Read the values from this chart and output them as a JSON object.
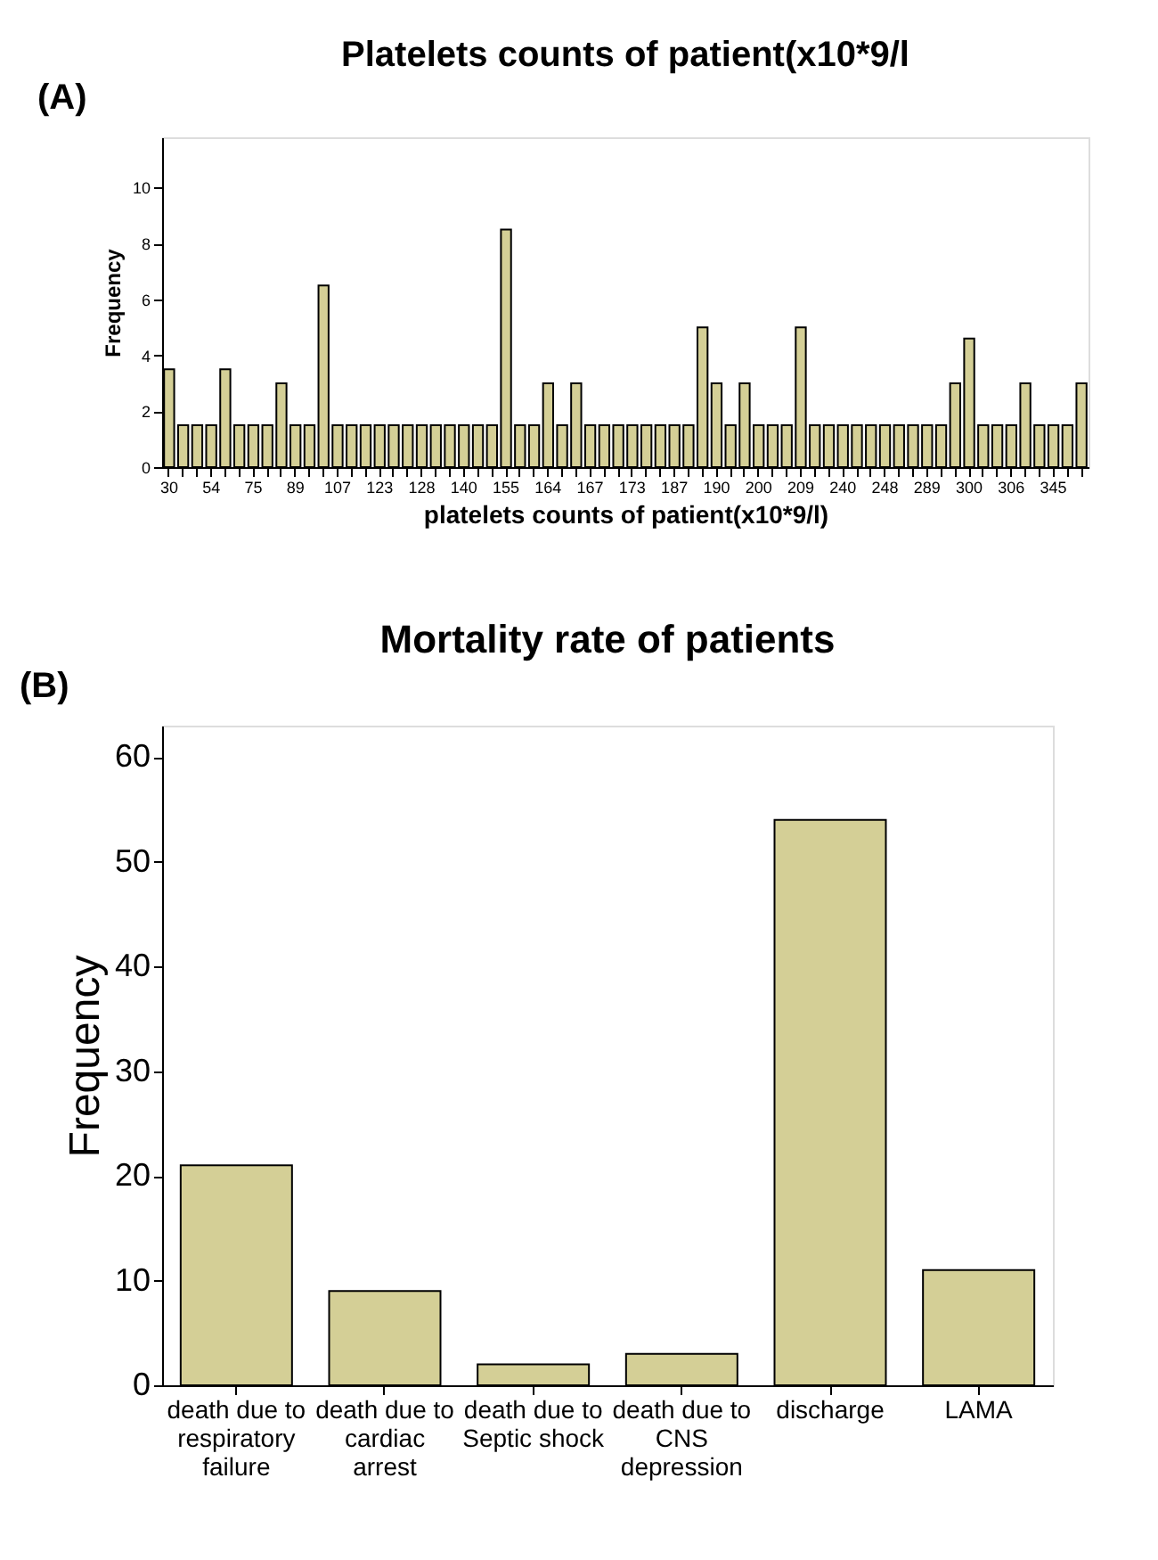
{
  "chart_data": [
    {
      "type": "bar",
      "title": "Platelets counts of patient(x10*9/l",
      "xlabel": "platelets counts of patient(x10*9/l)",
      "ylabel": "Frequency",
      "annotations": [
        "(A)"
      ],
      "categories": [
        "30",
        null,
        null,
        "54",
        null,
        null,
        "75",
        null,
        null,
        "89",
        null,
        null,
        "107",
        null,
        null,
        "123",
        null,
        null,
        "128",
        null,
        null,
        "140",
        null,
        null,
        "155",
        null,
        null,
        "164",
        null,
        null,
        "167",
        null,
        null,
        "173",
        null,
        null,
        "187",
        null,
        null,
        "190",
        null,
        null,
        "200",
        null,
        null,
        "209",
        null,
        null,
        "240",
        null,
        null,
        "248",
        null,
        null,
        "289",
        null,
        null,
        "300",
        null,
        null,
        "306",
        null,
        null,
        "345",
        null,
        null
      ],
      "values": [
        3.5,
        1.5,
        1.5,
        1.5,
        3.5,
        1.5,
        1.5,
        1.5,
        3,
        1.5,
        1.5,
        6.5,
        1.5,
        1.5,
        1.5,
        1.5,
        1.5,
        1.5,
        1.5,
        1.5,
        1.5,
        1.5,
        1.5,
        1.5,
        8.5,
        1.5,
        1.5,
        3,
        1.5,
        3,
        1.5,
        1.5,
        1.5,
        1.5,
        1.5,
        1.5,
        1.5,
        1.5,
        5,
        3,
        1.5,
        3,
        1.5,
        1.5,
        1.5,
        5,
        1.5,
        1.5,
        1.5,
        1.5,
        1.5,
        1.5,
        1.5,
        1.5,
        1.5,
        1.5,
        3,
        4.6,
        1.5,
        1.5,
        1.5,
        3,
        1.5,
        1.5,
        1.5,
        3
      ],
      "color": "#d4cf96",
      "ylim": [
        0,
        11.8
      ],
      "yticks": [
        0,
        2,
        4,
        6,
        8,
        10
      ],
      "grid": false
    },
    {
      "type": "bar",
      "title": "Mortality rate of patients",
      "ylabel": "Frequency",
      "annotations": [
        "(B)"
      ],
      "categories": [
        "death due to respiratory failure",
        "death due to cardiac arrest",
        "death due to Septic shock",
        "death due to CNS depression",
        "discharge",
        "LAMA"
      ],
      "values": [
        21,
        9,
        2,
        3,
        54,
        11
      ],
      "color": "#d4cf96",
      "ylim": [
        0,
        63
      ],
      "yticks": [
        0,
        10,
        20,
        30,
        40,
        50,
        60
      ],
      "grid": false
    }
  ]
}
